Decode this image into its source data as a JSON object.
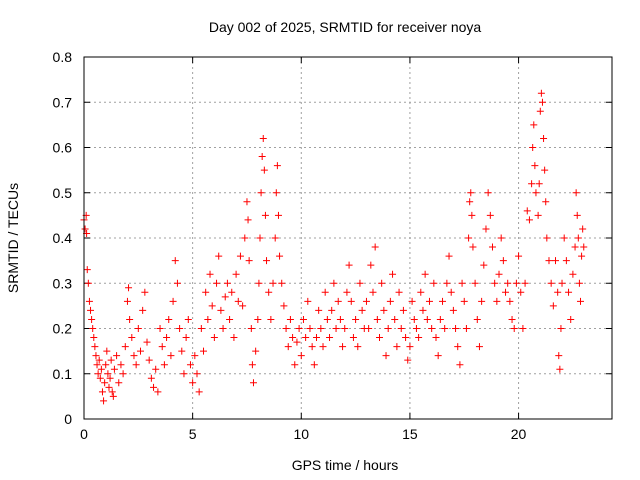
{
  "chart_data": {
    "type": "scatter",
    "title": "Day 002 of 2025, SRMTID for receiver noya",
    "xlabel": "GPS time / hours",
    "ylabel": "SRMTID / TECUs",
    "xlim": [
      0,
      24.3
    ],
    "ylim": [
      0,
      0.8
    ],
    "xticks": [
      0,
      5,
      10,
      15,
      20
    ],
    "yticks": [
      0,
      0.1,
      0.2,
      0.3,
      0.4,
      0.5,
      0.6,
      0.7,
      0.8
    ],
    "grid": true,
    "marker": "+",
    "series": [
      {
        "name": "SRMTID",
        "color": "#ff0000",
        "points": [
          [
            0.0,
            0.44
          ],
          [
            0.05,
            0.42
          ],
          [
            0.1,
            0.45
          ],
          [
            0.12,
            0.41
          ],
          [
            0.15,
            0.33
          ],
          [
            0.2,
            0.3
          ],
          [
            0.25,
            0.26
          ],
          [
            0.3,
            0.24
          ],
          [
            0.35,
            0.22
          ],
          [
            0.4,
            0.2
          ],
          [
            0.45,
            0.18
          ],
          [
            0.5,
            0.16
          ],
          [
            0.55,
            0.14
          ],
          [
            0.6,
            0.12
          ],
          [
            0.65,
            0.1
          ],
          [
            0.7,
            0.13
          ],
          [
            0.75,
            0.09
          ],
          [
            0.8,
            0.11
          ],
          [
            0.85,
            0.06
          ],
          [
            0.9,
            0.04
          ],
          [
            0.95,
            0.08
          ],
          [
            1.0,
            0.12
          ],
          [
            1.05,
            0.15
          ],
          [
            1.1,
            0.1
          ],
          [
            1.15,
            0.07
          ],
          [
            1.2,
            0.09
          ],
          [
            1.25,
            0.13
          ],
          [
            1.3,
            0.06
          ],
          [
            1.35,
            0.05
          ],
          [
            1.4,
            0.11
          ],
          [
            1.5,
            0.14
          ],
          [
            1.6,
            0.08
          ],
          [
            1.7,
            0.12
          ],
          [
            1.8,
            0.1
          ],
          [
            1.9,
            0.16
          ],
          [
            2.0,
            0.26
          ],
          [
            2.05,
            0.29
          ],
          [
            2.1,
            0.22
          ],
          [
            2.2,
            0.18
          ],
          [
            2.3,
            0.14
          ],
          [
            2.4,
            0.12
          ],
          [
            2.5,
            0.2
          ],
          [
            2.6,
            0.15
          ],
          [
            2.7,
            0.24
          ],
          [
            2.8,
            0.28
          ],
          [
            2.9,
            0.17
          ],
          [
            3.0,
            0.13
          ],
          [
            3.1,
            0.09
          ],
          [
            3.2,
            0.07
          ],
          [
            3.3,
            0.11
          ],
          [
            3.4,
            0.06
          ],
          [
            3.5,
            0.2
          ],
          [
            3.6,
            0.16
          ],
          [
            3.7,
            0.12
          ],
          [
            3.8,
            0.18
          ],
          [
            3.9,
            0.22
          ],
          [
            4.0,
            0.14
          ],
          [
            4.1,
            0.26
          ],
          [
            4.2,
            0.35
          ],
          [
            4.3,
            0.3
          ],
          [
            4.4,
            0.2
          ],
          [
            4.5,
            0.15
          ],
          [
            4.6,
            0.1
          ],
          [
            4.7,
            0.18
          ],
          [
            4.8,
            0.22
          ],
          [
            4.9,
            0.12
          ],
          [
            5.0,
            0.08
          ],
          [
            5.1,
            0.14
          ],
          [
            5.2,
            0.1
          ],
          [
            5.3,
            0.06
          ],
          [
            5.4,
            0.2
          ],
          [
            5.5,
            0.15
          ],
          [
            5.6,
            0.28
          ],
          [
            5.7,
            0.22
          ],
          [
            5.8,
            0.32
          ],
          [
            5.9,
            0.25
          ],
          [
            6.0,
            0.18
          ],
          [
            6.1,
            0.3
          ],
          [
            6.2,
            0.36
          ],
          [
            6.3,
            0.24
          ],
          [
            6.4,
            0.2
          ],
          [
            6.5,
            0.27
          ],
          [
            6.6,
            0.3
          ],
          [
            6.7,
            0.22
          ],
          [
            6.8,
            0.28
          ],
          [
            6.9,
            0.18
          ],
          [
            7.0,
            0.32
          ],
          [
            7.1,
            0.26
          ],
          [
            7.2,
            0.36
          ],
          [
            7.3,
            0.25
          ],
          [
            7.4,
            0.4
          ],
          [
            7.5,
            0.48
          ],
          [
            7.55,
            0.44
          ],
          [
            7.6,
            0.35
          ],
          [
            7.7,
            0.2
          ],
          [
            7.75,
            0.12
          ],
          [
            7.8,
            0.08
          ],
          [
            7.9,
            0.15
          ],
          [
            8.0,
            0.22
          ],
          [
            8.05,
            0.3
          ],
          [
            8.1,
            0.4
          ],
          [
            8.15,
            0.5
          ],
          [
            8.2,
            0.58
          ],
          [
            8.25,
            0.62
          ],
          [
            8.3,
            0.55
          ],
          [
            8.35,
            0.45
          ],
          [
            8.4,
            0.35
          ],
          [
            8.5,
            0.28
          ],
          [
            8.6,
            0.22
          ],
          [
            8.7,
            0.3
          ],
          [
            8.8,
            0.4
          ],
          [
            8.85,
            0.5
          ],
          [
            8.9,
            0.56
          ],
          [
            8.95,
            0.45
          ],
          [
            9.0,
            0.36
          ],
          [
            9.1,
            0.3
          ],
          [
            9.2,
            0.25
          ],
          [
            9.3,
            0.2
          ],
          [
            9.4,
            0.16
          ],
          [
            9.5,
            0.22
          ],
          [
            9.6,
            0.18
          ],
          [
            9.7,
            0.12
          ],
          [
            9.8,
            0.17
          ],
          [
            9.9,
            0.2
          ],
          [
            10.0,
            0.14
          ],
          [
            10.1,
            0.22
          ],
          [
            10.2,
            0.18
          ],
          [
            10.3,
            0.26
          ],
          [
            10.4,
            0.2
          ],
          [
            10.5,
            0.16
          ],
          [
            10.6,
            0.12
          ],
          [
            10.7,
            0.18
          ],
          [
            10.8,
            0.24
          ],
          [
            10.9,
            0.2
          ],
          [
            11.0,
            0.16
          ],
          [
            11.1,
            0.28
          ],
          [
            11.2,
            0.22
          ],
          [
            11.3,
            0.18
          ],
          [
            11.4,
            0.24
          ],
          [
            11.5,
            0.3
          ],
          [
            11.6,
            0.2
          ],
          [
            11.7,
            0.26
          ],
          [
            11.8,
            0.22
          ],
          [
            11.9,
            0.16
          ],
          [
            12.0,
            0.2
          ],
          [
            12.1,
            0.28
          ],
          [
            12.2,
            0.34
          ],
          [
            12.3,
            0.26
          ],
          [
            12.4,
            0.18
          ],
          [
            12.5,
            0.22
          ],
          [
            12.6,
            0.16
          ],
          [
            12.7,
            0.3
          ],
          [
            12.8,
            0.24
          ],
          [
            12.9,
            0.2
          ],
          [
            13.0,
            0.26
          ],
          [
            13.1,
            0.2
          ],
          [
            13.2,
            0.34
          ],
          [
            13.3,
            0.28
          ],
          [
            13.4,
            0.38
          ],
          [
            13.5,
            0.22
          ],
          [
            13.6,
            0.18
          ],
          [
            13.7,
            0.3
          ],
          [
            13.8,
            0.24
          ],
          [
            13.9,
            0.14
          ],
          [
            14.0,
            0.2
          ],
          [
            14.1,
            0.26
          ],
          [
            14.2,
            0.32
          ],
          [
            14.3,
            0.22
          ],
          [
            14.4,
            0.16
          ],
          [
            14.5,
            0.28
          ],
          [
            14.6,
            0.2
          ],
          [
            14.7,
            0.24
          ],
          [
            14.8,
            0.18
          ],
          [
            14.9,
            0.13
          ],
          [
            15.0,
            0.16
          ],
          [
            15.1,
            0.26
          ],
          [
            15.2,
            0.22
          ],
          [
            15.3,
            0.2
          ],
          [
            15.4,
            0.18
          ],
          [
            15.5,
            0.28
          ],
          [
            15.6,
            0.24
          ],
          [
            15.7,
            0.32
          ],
          [
            15.8,
            0.22
          ],
          [
            15.9,
            0.26
          ],
          [
            16.0,
            0.2
          ],
          [
            16.1,
            0.3
          ],
          [
            16.2,
            0.18
          ],
          [
            16.3,
            0.14
          ],
          [
            16.4,
            0.22
          ],
          [
            16.5,
            0.26
          ],
          [
            16.6,
            0.2
          ],
          [
            16.7,
            0.3
          ],
          [
            16.8,
            0.36
          ],
          [
            16.9,
            0.28
          ],
          [
            17.0,
            0.24
          ],
          [
            17.1,
            0.2
          ],
          [
            17.2,
            0.16
          ],
          [
            17.3,
            0.12
          ],
          [
            17.4,
            0.3
          ],
          [
            17.5,
            0.26
          ],
          [
            17.6,
            0.2
          ],
          [
            17.7,
            0.4
          ],
          [
            17.75,
            0.48
          ],
          [
            17.8,
            0.5
          ],
          [
            17.85,
            0.45
          ],
          [
            17.9,
            0.38
          ],
          [
            18.0,
            0.3
          ],
          [
            18.1,
            0.22
          ],
          [
            18.2,
            0.16
          ],
          [
            18.3,
            0.26
          ],
          [
            18.4,
            0.34
          ],
          [
            18.5,
            0.42
          ],
          [
            18.6,
            0.5
          ],
          [
            18.7,
            0.45
          ],
          [
            18.8,
            0.38
          ],
          [
            18.9,
            0.3
          ],
          [
            19.0,
            0.26
          ],
          [
            19.1,
            0.32
          ],
          [
            19.2,
            0.4
          ],
          [
            19.3,
            0.35
          ],
          [
            19.4,
            0.28
          ],
          [
            19.5,
            0.3
          ],
          [
            19.6,
            0.26
          ],
          [
            19.7,
            0.22
          ],
          [
            19.8,
            0.2
          ],
          [
            19.9,
            0.3
          ],
          [
            20.0,
            0.36
          ],
          [
            20.1,
            0.28
          ],
          [
            20.2,
            0.2
          ],
          [
            20.3,
            0.3
          ],
          [
            20.4,
            0.46
          ],
          [
            20.5,
            0.44
          ],
          [
            20.6,
            0.52
          ],
          [
            20.65,
            0.6
          ],
          [
            20.7,
            0.65
          ],
          [
            20.75,
            0.56
          ],
          [
            20.8,
            0.5
          ],
          [
            20.9,
            0.45
          ],
          [
            20.95,
            0.52
          ],
          [
            21.0,
            0.68
          ],
          [
            21.05,
            0.72
          ],
          [
            21.1,
            0.7
          ],
          [
            21.15,
            0.62
          ],
          [
            21.2,
            0.55
          ],
          [
            21.25,
            0.48
          ],
          [
            21.3,
            0.4
          ],
          [
            21.4,
            0.35
          ],
          [
            21.5,
            0.3
          ],
          [
            21.6,
            0.25
          ],
          [
            21.7,
            0.35
          ],
          [
            21.8,
            0.28
          ],
          [
            21.85,
            0.14
          ],
          [
            21.9,
            0.11
          ],
          [
            21.95,
            0.2
          ],
          [
            22.0,
            0.3
          ],
          [
            22.1,
            0.4
          ],
          [
            22.2,
            0.35
          ],
          [
            22.3,
            0.28
          ],
          [
            22.4,
            0.22
          ],
          [
            22.5,
            0.32
          ],
          [
            22.6,
            0.38
          ],
          [
            22.65,
            0.5
          ],
          [
            22.7,
            0.45
          ],
          [
            22.75,
            0.4
          ],
          [
            22.8,
            0.3
          ],
          [
            22.85,
            0.26
          ],
          [
            22.9,
            0.36
          ],
          [
            22.95,
            0.42
          ],
          [
            23.0,
            0.38
          ]
        ]
      }
    ]
  }
}
